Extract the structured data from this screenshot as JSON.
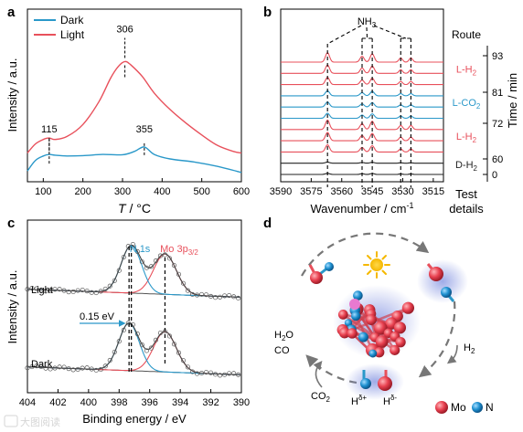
{
  "panels": {
    "a": "a",
    "b": "b",
    "c": "c",
    "d": "d"
  },
  "chart_data": [
    {
      "panel": "a",
      "type": "line",
      "xlabel_italic": "T",
      "xlabel_unit": "/ °C",
      "ylabel": "Intensity / a.u.",
      "xlim": [
        60,
        600
      ],
      "xticks": [
        100,
        200,
        300,
        400,
        500,
        600
      ],
      "legend_position": "top-left",
      "series": [
        {
          "name": "Dark",
          "color": "#2a98c9",
          "x": [
            60,
            80,
            100,
            115,
            130,
            160,
            200,
            250,
            300,
            330,
            355,
            380,
            420,
            480,
            540,
            600
          ],
          "y": [
            0.06,
            0.13,
            0.16,
            0.17,
            0.165,
            0.16,
            0.162,
            0.17,
            0.168,
            0.19,
            0.22,
            0.17,
            0.14,
            0.12,
            0.09,
            0.05
          ]
        },
        {
          "name": "Light",
          "color": "#e8505b",
          "x": [
            60,
            80,
            100,
            115,
            130,
            160,
            200,
            240,
            270,
            290,
            306,
            320,
            350,
            380,
            420,
            460,
            500,
            540,
            580,
            600
          ],
          "y": [
            0.18,
            0.24,
            0.27,
            0.28,
            0.27,
            0.29,
            0.37,
            0.52,
            0.68,
            0.76,
            0.79,
            0.77,
            0.69,
            0.58,
            0.47,
            0.38,
            0.3,
            0.23,
            0.19,
            0.18
          ]
        }
      ],
      "annotations": [
        {
          "label": "115",
          "x": 115,
          "y": 0.17
        },
        {
          "label": "306",
          "x": 306,
          "y": 0.79
        },
        {
          "label": "355",
          "x": 355,
          "y": 0.22
        }
      ]
    },
    {
      "panel": "b",
      "type": "line",
      "xlabel": "Wavenumber / cm",
      "xlabel_sup": "-1",
      "xlim": [
        3590,
        3510
      ],
      "xticks": [
        3590,
        3575,
        3560,
        3545,
        3530,
        3515
      ],
      "nh3_label": "NH",
      "nh3_sub": "3",
      "nh3_peaks": [
        3567,
        3547,
        3532
      ],
      "peak_positions": [
        3567,
        3550,
        3545,
        3531,
        3526
      ],
      "route_title": "Route",
      "test_details": [
        "Test",
        "details"
      ],
      "time_axis_label": "Time / min",
      "time_ticks": [
        0,
        60,
        72,
        81,
        93
      ],
      "route_segments": [
        {
          "label": "D-H",
          "sub": "2",
          "color": "#222222",
          "spectra_color": "#222222",
          "spectra": 2
        },
        {
          "label": "L-H",
          "sub": "2",
          "color": "#e8505b",
          "spectra_color": "#e8505b",
          "spectra": 3
        },
        {
          "label": "L-CO",
          "sub": "2",
          "color": "#2a98c9",
          "spectra_color": "#2a98c9",
          "spectra": 3
        },
        {
          "label": "L-H",
          "sub": "2",
          "color": "#e8505b",
          "spectra_color": "#e8505b",
          "spectra": 3
        }
      ]
    },
    {
      "panel": "c",
      "type": "line",
      "xlabel": "Binding energy / eV",
      "ylabel": "Intensity / a.u.",
      "xlim": [
        404,
        390
      ],
      "xticks": [
        404,
        402,
        400,
        398,
        396,
        394,
        392,
        390
      ],
      "n1s_label": "N 1s",
      "mo3p_label": "Mo 3p",
      "mo3p_sub": "3/2",
      "shift_label": "0.15 eV",
      "spectra": [
        {
          "name": "Light",
          "n_peak": 397.2,
          "mo_peak": 395.0
        },
        {
          "name": "Dark",
          "n_peak": 397.35,
          "mo_peak": 395.0
        }
      ],
      "fit_colors": {
        "envelope": "#444444",
        "n_component": "#2a98c9",
        "mo_component": "#e8505b",
        "background": "#555555"
      }
    }
  ],
  "scheme_d": {
    "left_labels": [
      "H",
      "CO"
    ],
    "h2o": {
      "base": "H",
      "sub": "2",
      "tail": "O"
    },
    "h2": {
      "base": "H",
      "sub": "2"
    },
    "co2": {
      "base": "CO",
      "sub": "2"
    },
    "h_plus": {
      "base": "H",
      "sup": "δ+"
    },
    "h_minus": {
      "base": "H",
      "sup": "δ-"
    },
    "legend": [
      {
        "name": "Mo",
        "color": "#e8404f"
      },
      {
        "name": "N",
        "color": "#1e90d0"
      }
    ]
  },
  "watermark": "大图阅读"
}
